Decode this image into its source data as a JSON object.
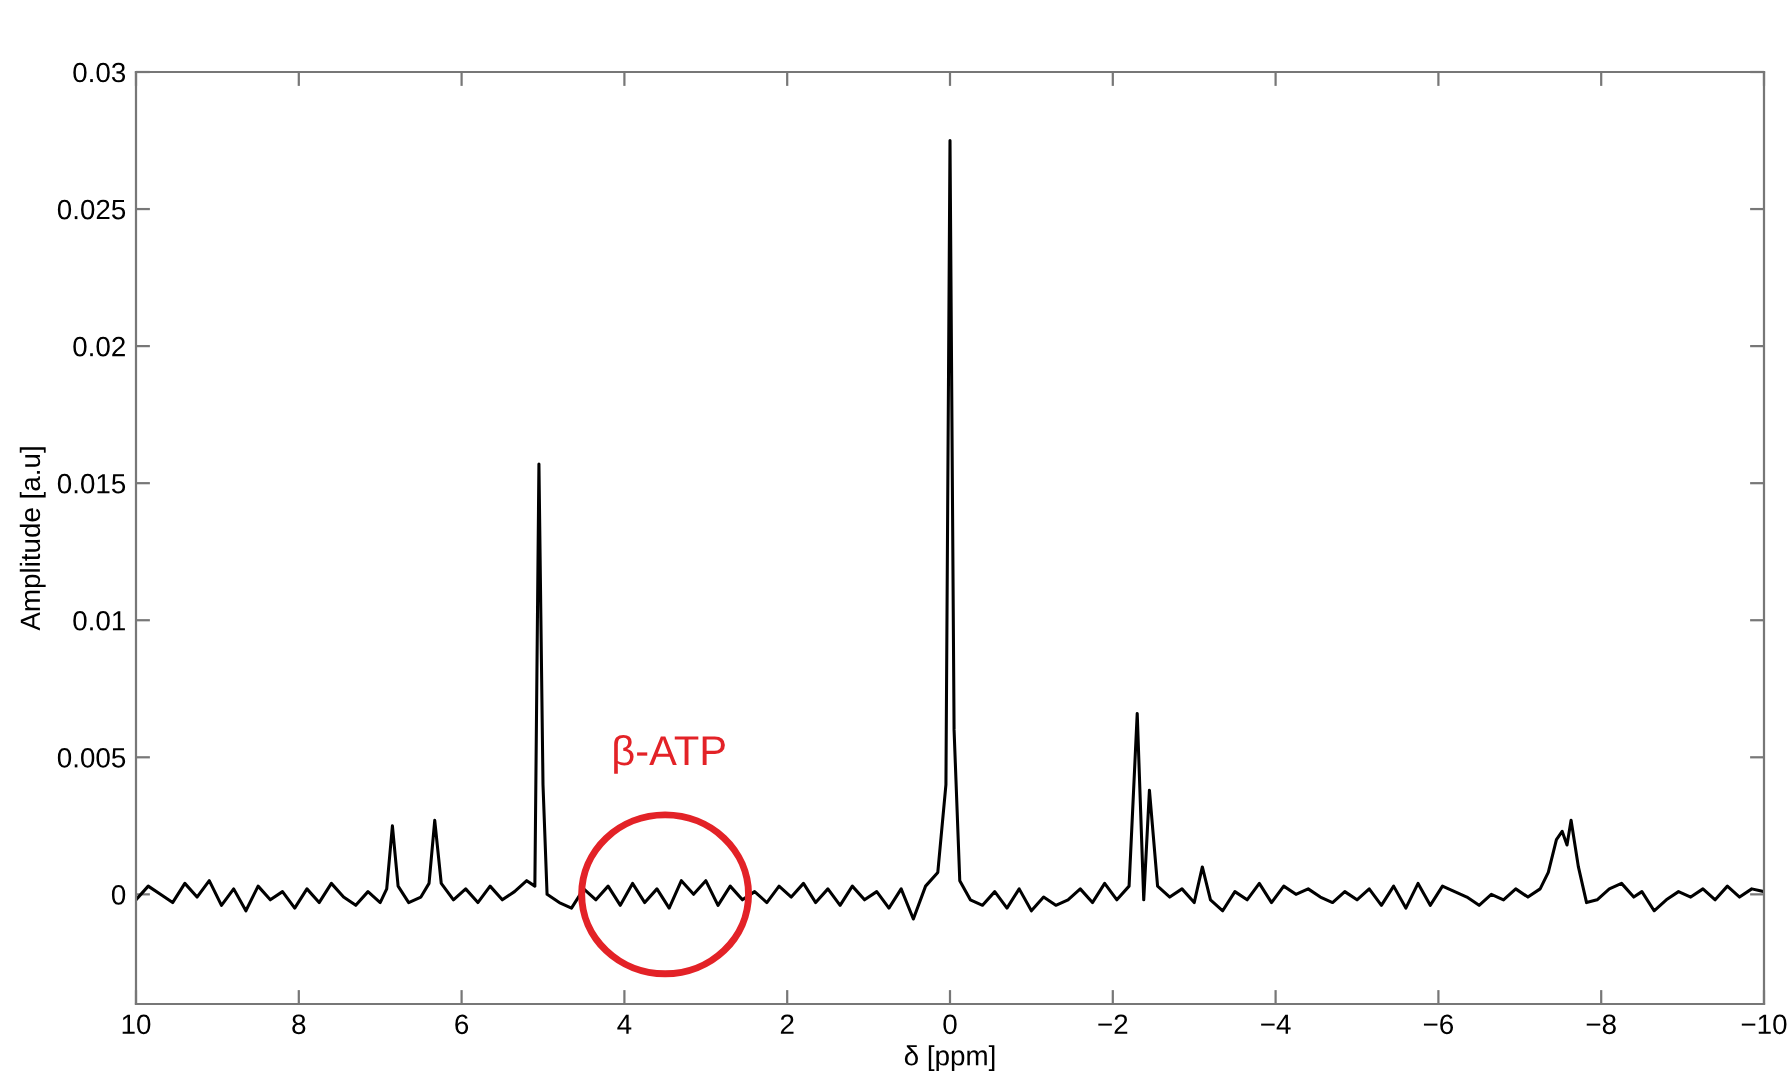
{
  "chart_data": {
    "type": "line",
    "xlabel": "δ [ppm]",
    "ylabel": "Amplitude [a.u]",
    "xlim": [
      10,
      -10
    ],
    "ylim": [
      -0.004,
      0.03
    ],
    "xticks": [
      10,
      8,
      6,
      4,
      2,
      0,
      {
        "value": -2,
        "label": "−2"
      },
      {
        "value": -4,
        "label": "−4"
      },
      {
        "value": -6,
        "label": "−6"
      },
      {
        "value": -8,
        "label": "−8"
      },
      {
        "value": -10,
        "label": "−10"
      }
    ],
    "yticks": [
      0,
      0.005,
      0.01,
      0.015,
      0.02,
      0.025,
      0.03
    ],
    "grid": false,
    "marker": "none",
    "line_style": "solid",
    "annotations": [
      {
        "text": "β-ATP",
        "x": 3.5,
        "y": 0
      }
    ],
    "series": [
      {
        "color": "#000000",
        "x": [
          10.0,
          9.85,
          9.7,
          9.55,
          9.4,
          9.25,
          9.1,
          8.95,
          8.8,
          8.65,
          8.5,
          8.35,
          8.2,
          8.05,
          7.9,
          7.75,
          7.6,
          7.45,
          7.3,
          7.15,
          7.0,
          6.92,
          6.85,
          6.78,
          6.65,
          6.5,
          6.4,
          6.33,
          6.25,
          6.1,
          5.95,
          5.8,
          5.65,
          5.5,
          5.35,
          5.2,
          5.1,
          5.05,
          5.0,
          4.95,
          4.8,
          4.65,
          4.5,
          4.35,
          4.2,
          4.05,
          3.9,
          3.75,
          3.6,
          3.45,
          3.3,
          3.15,
          3.0,
          2.85,
          2.7,
          2.55,
          2.4,
          2.25,
          2.1,
          1.95,
          1.8,
          1.65,
          1.5,
          1.35,
          1.2,
          1.05,
          0.9,
          0.75,
          0.6,
          0.45,
          0.3,
          0.15,
          0.05,
          0.0,
          -0.05,
          -0.12,
          -0.25,
          -0.4,
          -0.55,
          -0.7,
          -0.85,
          -1.0,
          -1.15,
          -1.3,
          -1.45,
          -1.6,
          -1.75,
          -1.9,
          -2.05,
          -2.2,
          -2.3,
          -2.38,
          -2.45,
          -2.55,
          -2.7,
          -2.85,
          -3.0,
          -3.1,
          -3.2,
          -3.35,
          -3.5,
          -3.65,
          -3.8,
          -3.95,
          -4.1,
          -4.25,
          -4.4,
          -4.55,
          -4.7,
          -4.85,
          -5.0,
          -5.15,
          -5.3,
          -5.45,
          -5.6,
          -5.75,
          -5.9,
          -6.05,
          -6.2,
          -6.35,
          -6.5,
          -6.65,
          -6.8,
          -6.95,
          -7.1,
          -7.25,
          -7.35,
          -7.45,
          -7.52,
          -7.58,
          -7.63,
          -7.72,
          -7.82,
          -7.95,
          -8.1,
          -8.25,
          -8.4,
          -8.5,
          -8.65,
          -8.8,
          -8.95,
          -9.1,
          -9.25,
          -9.4,
          -9.55,
          -9.7,
          -9.85,
          -10.0
        ],
        "values": [
          -0.0002,
          0.0003,
          0.0,
          -0.0003,
          0.0004,
          -0.0001,
          0.0005,
          -0.0004,
          0.0002,
          -0.0006,
          0.0003,
          -0.0002,
          0.0001,
          -0.0005,
          0.0002,
          -0.0003,
          0.0004,
          -0.0001,
          -0.0004,
          0.0001,
          -0.0003,
          0.0002,
          0.0025,
          0.0003,
          -0.0003,
          -0.0001,
          0.0004,
          0.0027,
          0.0004,
          -0.0002,
          0.0002,
          -0.0003,
          0.0003,
          -0.0002,
          0.0001,
          0.0005,
          0.0003,
          0.0157,
          0.004,
          0.0,
          -0.0003,
          -0.0005,
          0.0002,
          -0.0002,
          0.0003,
          -0.0004,
          0.0004,
          -0.0003,
          0.0002,
          -0.0005,
          0.0005,
          0.0,
          0.0005,
          -0.0004,
          0.0003,
          -0.0002,
          0.0001,
          -0.0003,
          0.0003,
          -0.0001,
          0.0004,
          -0.0003,
          0.0002,
          -0.0004,
          0.0003,
          -0.0002,
          0.0001,
          -0.0005,
          0.0002,
          -0.0009,
          0.0003,
          0.0008,
          0.004,
          0.0275,
          0.006,
          0.0005,
          -0.0002,
          -0.0004,
          0.0001,
          -0.0005,
          0.0002,
          -0.0006,
          -0.0001,
          -0.0004,
          -0.0002,
          0.0002,
          -0.0003,
          0.0004,
          -0.0002,
          0.0003,
          0.0066,
          -0.0002,
          0.0038,
          0.0003,
          -0.0001,
          0.0002,
          -0.0003,
          0.001,
          -0.0002,
          -0.0006,
          0.0001,
          -0.0002,
          0.0004,
          -0.0003,
          0.0003,
          0.0,
          0.0002,
          -0.0001,
          -0.0003,
          0.0001,
          -0.0002,
          0.0002,
          -0.0004,
          0.0003,
          -0.0005,
          0.0004,
          -0.0004,
          0.0003,
          0.0001,
          -0.0001,
          -0.0004,
          0.0,
          -0.0002,
          0.0002,
          -0.0001,
          0.0002,
          0.0008,
          0.002,
          0.0023,
          0.0018,
          0.0027,
          0.001,
          -0.0003,
          -0.0002,
          0.0002,
          0.0004,
          -0.0001,
          0.0001,
          -0.0006,
          -0.0002,
          0.0001,
          -0.0001,
          0.0002,
          -0.0002,
          0.0003,
          -0.0001,
          0.0002,
          0.0001
        ]
      }
    ]
  }
}
